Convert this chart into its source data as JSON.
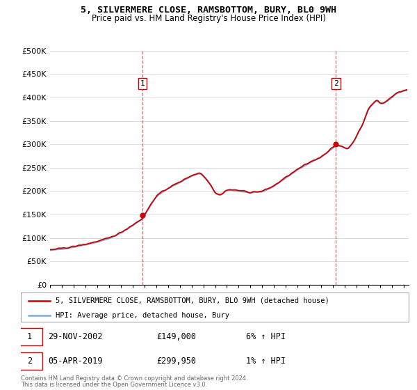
{
  "title1": "5, SILVERMERE CLOSE, RAMSBOTTOM, BURY, BL0 9WH",
  "title2": "Price paid vs. HM Land Registry's House Price Index (HPI)",
  "legend_line1": "5, SILVERMERE CLOSE, RAMSBOTTOM, BURY, BL0 9WH (detached house)",
  "legend_line2": "HPI: Average price, detached house, Bury",
  "transaction1_date": "29-NOV-2002",
  "transaction1_price": 149000,
  "transaction1_label": "1",
  "transaction1_pct": "6% ↑ HPI",
  "transaction2_date": "05-APR-2019",
  "transaction2_price": 299950,
  "transaction2_label": "2",
  "transaction2_pct": "1% ↑ HPI",
  "footer1": "Contains HM Land Registry data © Crown copyright and database right 2024.",
  "footer2": "This data is licensed under the Open Government Licence v3.0.",
  "ylim_max": 500000,
  "ylim_min": 0,
  "background_color": "#ffffff",
  "hpi_color": "#7aaed6",
  "price_color": "#cc0000",
  "vline_color": "#cc0000",
  "grid_color": "#dddddd"
}
